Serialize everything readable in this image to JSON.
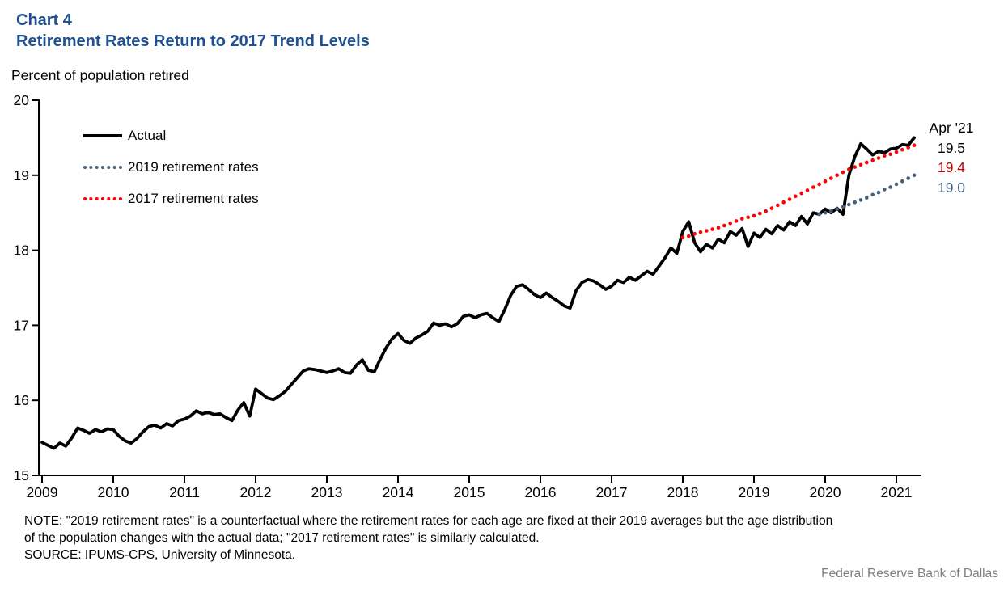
{
  "header": {
    "chart_label": "Chart 4",
    "title": "Retirement Rates Return to 2017 Trend Levels"
  },
  "subtitle": "Percent of population retired",
  "annotation": {
    "date_label": "Apr '21"
  },
  "note": {
    "line1": "NOTE: \"2019 retirement rates\" is a counterfactual where the retirement rates for each age are fixed at their 2019 averages but the age distribution",
    "line2": "of the population changes with the actual data; \"2017 retirement rates\" is similarly calculated.",
    "source": "SOURCE: IPUMS-CPS, University of Minnesota."
  },
  "footer": "Federal Reserve Bank of Dallas",
  "colors": {
    "title_blue": "#1F5091",
    "axis_black": "#000000",
    "footer_gray": "#7F7F7F"
  },
  "chart_data": {
    "type": "line",
    "title": "Retirement Rates Return to 2017 Trend Levels",
    "ylabel": "Percent of population retired",
    "ylim": [
      15,
      20
    ],
    "y_ticks": [
      "15",
      "16",
      "17",
      "18",
      "19",
      "20"
    ],
    "y_tick_values": [
      15,
      16,
      17,
      18,
      19,
      20
    ],
    "x_ticks": [
      "2009",
      "2010",
      "2011",
      "2012",
      "2013",
      "2014",
      "2015",
      "2016",
      "2017",
      "2018",
      "2019",
      "2020",
      "2021"
    ],
    "x_start": "2009-01",
    "x_end": "2021-04",
    "frequency": "monthly",
    "grid": false,
    "legend_position": "top-left-inside",
    "series": [
      {
        "key": "actual",
        "name": "Actual",
        "line_style": "solid",
        "color": "#000000",
        "label_color": "#000000",
        "start": "2009-01",
        "end_value_label": "19.5",
        "values": [
          15.44,
          15.4,
          15.36,
          15.43,
          15.39,
          15.5,
          15.63,
          15.6,
          15.56,
          15.61,
          15.58,
          15.62,
          15.61,
          15.52,
          15.46,
          15.43,
          15.49,
          15.58,
          15.65,
          15.67,
          15.63,
          15.69,
          15.66,
          15.73,
          15.75,
          15.79,
          15.86,
          15.82,
          15.84,
          15.81,
          15.82,
          15.77,
          15.73,
          15.87,
          15.97,
          15.79,
          16.15,
          16.09,
          16.03,
          16.01,
          16.06,
          16.12,
          16.21,
          16.3,
          16.39,
          16.42,
          16.41,
          16.39,
          16.37,
          16.39,
          16.42,
          16.37,
          16.36,
          16.47,
          16.54,
          16.4,
          16.38,
          16.55,
          16.7,
          16.82,
          16.89,
          16.8,
          16.76,
          16.83,
          16.87,
          16.92,
          17.03,
          17.0,
          17.02,
          16.98,
          17.02,
          17.12,
          17.14,
          17.1,
          17.14,
          17.16,
          17.1,
          17.05,
          17.21,
          17.4,
          17.52,
          17.54,
          17.48,
          17.41,
          17.37,
          17.43,
          17.37,
          17.32,
          17.26,
          17.23,
          17.46,
          17.57,
          17.61,
          17.59,
          17.54,
          17.48,
          17.52,
          17.6,
          17.57,
          17.64,
          17.6,
          17.66,
          17.72,
          17.68,
          17.79,
          17.9,
          18.03,
          17.96,
          18.25,
          18.38,
          18.1,
          17.98,
          18.08,
          18.03,
          18.15,
          18.1,
          18.25,
          18.2,
          18.29,
          18.05,
          18.23,
          18.17,
          18.28,
          18.22,
          18.33,
          18.27,
          18.38,
          18.33,
          18.45,
          18.35,
          18.5,
          18.48,
          18.55,
          18.5,
          18.56,
          18.48,
          19.0,
          19.25,
          19.42,
          19.35,
          19.27,
          19.32,
          19.3,
          19.35,
          19.36,
          19.41,
          19.4,
          19.5
        ]
      },
      {
        "key": "rates_2019",
        "name": "2019 retirement rates",
        "line_style": "dotted",
        "color": "#44607E",
        "label_color": "#44607E",
        "start": "2019-12",
        "end_value_label": "19.0",
        "values": [
          18.48,
          18.5,
          18.52,
          18.55,
          18.58,
          18.61,
          18.64,
          18.67,
          18.7,
          18.74,
          18.77,
          18.81,
          18.84,
          18.88,
          18.92,
          18.96,
          19.0
        ]
      },
      {
        "key": "rates_2017",
        "name": "2017 retirement rates",
        "line_style": "dotted",
        "color": "#FF0000",
        "label_color": "#C00000",
        "start": "2018-01",
        "end_value_label": "19.4",
        "values": [
          18.17,
          18.19,
          18.22,
          18.24,
          18.26,
          18.28,
          18.3,
          18.33,
          18.36,
          18.39,
          18.42,
          18.44,
          18.46,
          18.49,
          18.52,
          18.56,
          18.6,
          18.64,
          18.68,
          18.72,
          18.76,
          18.8,
          18.84,
          18.88,
          18.92,
          18.96,
          19.0,
          19.04,
          19.08,
          19.11,
          19.14,
          19.17,
          19.2,
          19.23,
          19.26,
          19.28,
          19.31,
          19.34,
          19.37,
          19.4
        ]
      }
    ]
  }
}
